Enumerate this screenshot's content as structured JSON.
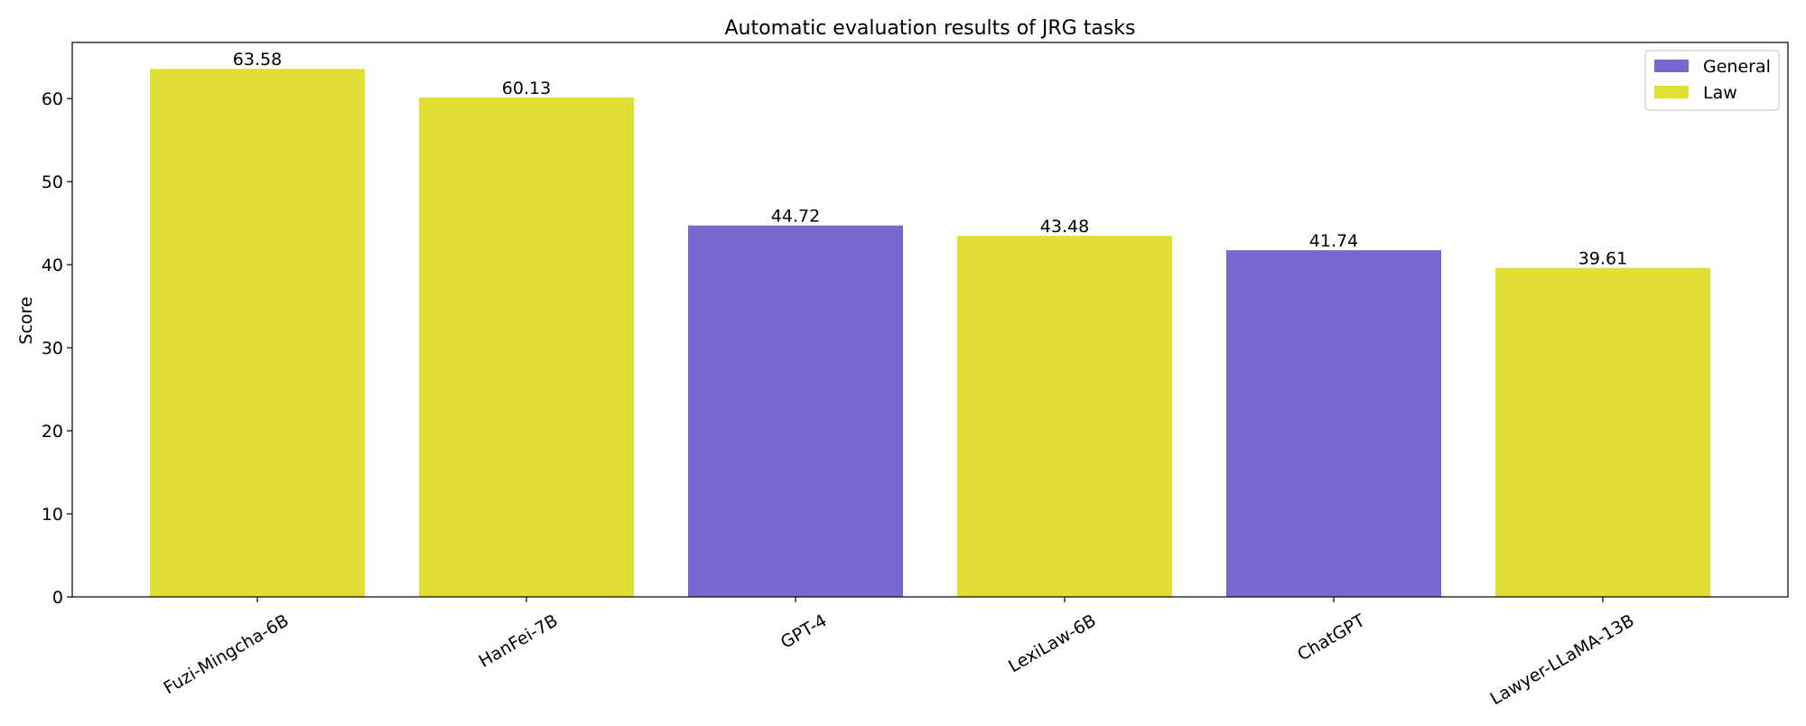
{
  "chart_data": {
    "type": "bar",
    "title": "Automatic evaluation results of JRG tasks",
    "xlabel": "",
    "ylabel": "Score",
    "ylim": [
      0,
      66.76
    ],
    "yticks": [
      0,
      10,
      20,
      30,
      40,
      50,
      60
    ],
    "grid": false,
    "legend_position": "top-right",
    "categories": [
      "Fuzi-Mingcha-6B",
      "HanFei-7B",
      "GPT-4",
      "LexiLaw-6B",
      "ChatGPT",
      "Lawyer-LLaMA-13B"
    ],
    "values": [
      63.58,
      60.13,
      44.72,
      43.48,
      41.74,
      39.61
    ],
    "data_labels": [
      "63.58",
      "60.13",
      "44.72",
      "43.48",
      "41.74",
      "39.61"
    ],
    "groups": [
      "Law",
      "Law",
      "General",
      "Law",
      "General",
      "Law"
    ],
    "legend": [
      {
        "name": "General",
        "color": "#7869d1"
      },
      {
        "name": "Law",
        "color": "#e0df35"
      }
    ]
  }
}
